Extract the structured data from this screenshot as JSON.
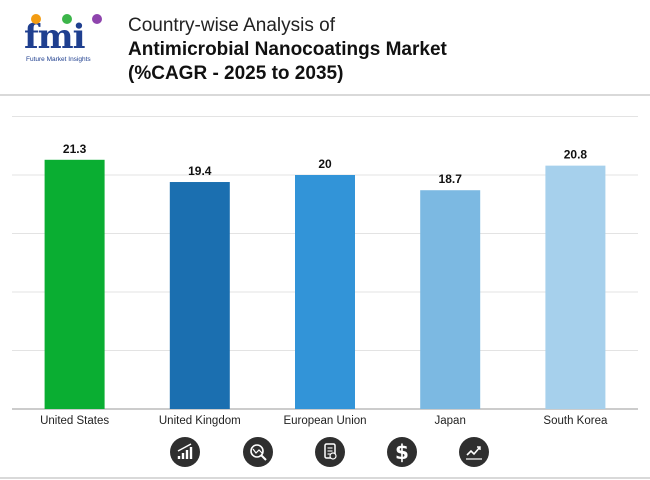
{
  "brand": {
    "logo_text": "fmi",
    "tagline": "Future Market Insights"
  },
  "title": {
    "line1": "Country-wise Analysis of",
    "line2": "Antimicrobial Nanocoatings Market",
    "line3": "(%CAGR - 2025 to 2035)"
  },
  "chart_data": {
    "type": "bar",
    "title": "Country-wise Analysis of Antimicrobial Nanocoatings Market (%CAGR - 2025 to 2035)",
    "categories": [
      "United States",
      "United Kingdom",
      "European Union",
      "Japan",
      "South Korea"
    ],
    "values": [
      21.3,
      19.4,
      20,
      18.7,
      20.8
    ],
    "value_labels": [
      "21.3",
      "19.4",
      "20",
      "18.7",
      "20.8"
    ],
    "colors": [
      "#0aae32",
      "#1b6fb0",
      "#3294d8",
      "#7cb9e2",
      "#a6d0ec"
    ],
    "xlabel": "",
    "ylabel": "",
    "ylim": [
      0,
      25
    ],
    "grid": true,
    "legend": "none"
  },
  "footer_icons": [
    "growth-chart-icon",
    "magnifier-trend-icon",
    "report-document-icon",
    "dollar-icon",
    "trend-line-icon"
  ]
}
